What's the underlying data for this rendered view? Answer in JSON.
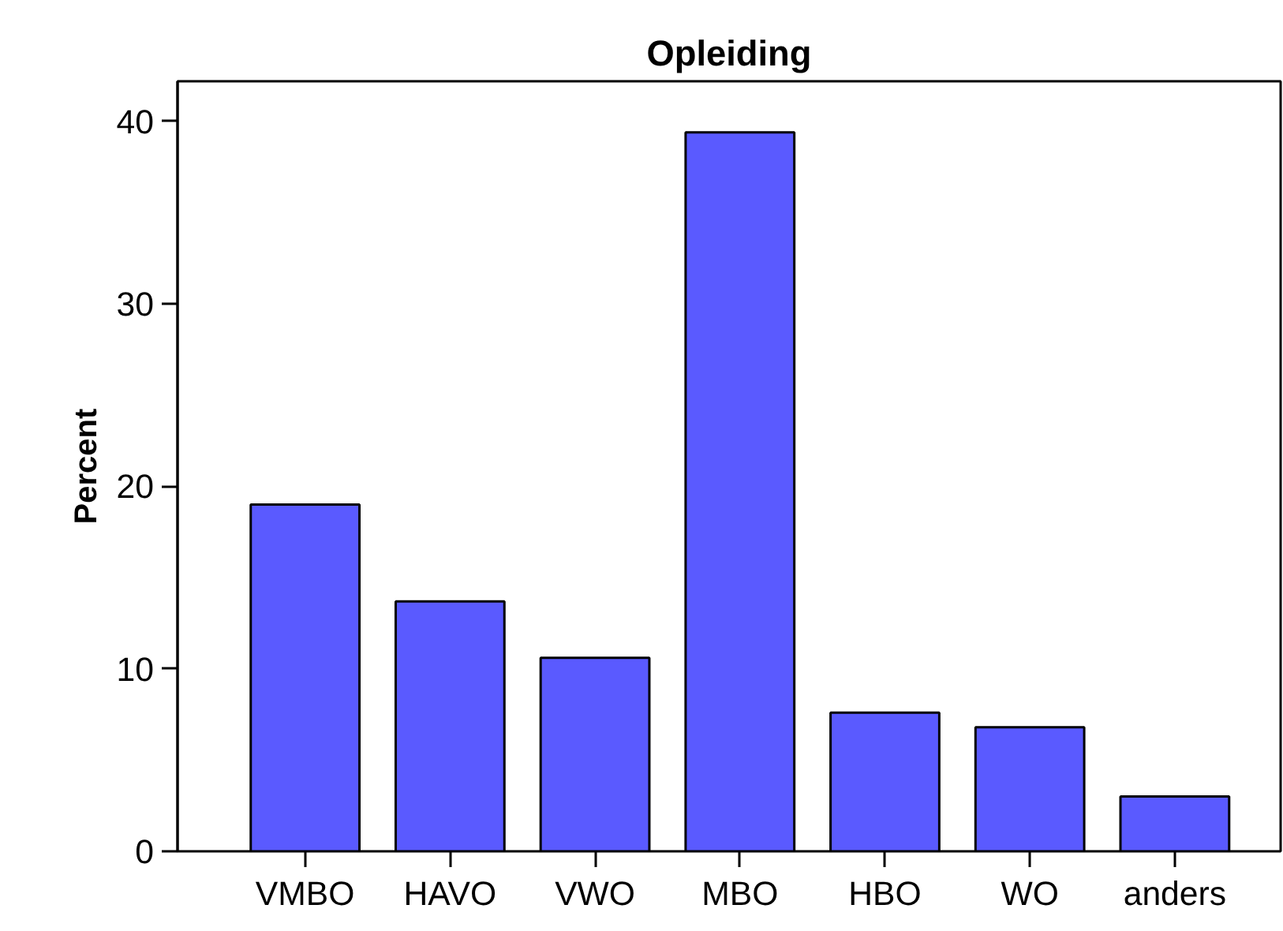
{
  "chart_data": {
    "type": "bar",
    "title": "Opleiding",
    "ylabel": "Percent",
    "categories": [
      "VMBO",
      "HAVO",
      "VWO",
      "MBO",
      "HBO",
      "WO",
      "anders"
    ],
    "values": [
      19.0,
      13.7,
      10.6,
      39.4,
      7.6,
      6.8,
      3.0
    ],
    "color": "#5a5aff",
    "ylim": [
      0,
      42.2
    ],
    "yticks": [
      0,
      10,
      20,
      30,
      40
    ],
    "grid": false
  }
}
